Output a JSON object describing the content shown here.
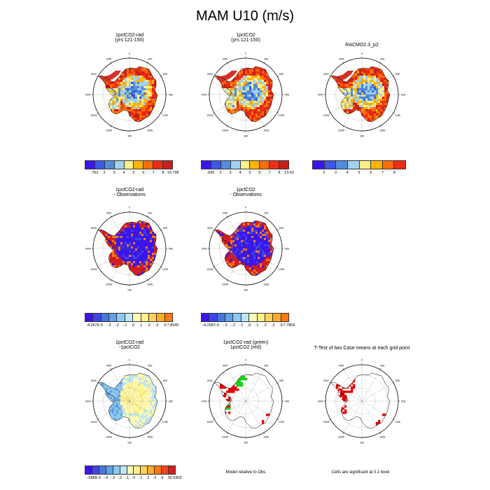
{
  "title": "MAM U10 (m/s)",
  "colors": {
    "rainbow": [
      "#3c14f0",
      "#3c5ae6",
      "#508cdc",
      "#a0d2f0",
      "#fff08c",
      "#ffb400",
      "#ff6e00",
      "#f02d14",
      "#c81e1e"
    ],
    "diff": [
      "#3c14f0",
      "#3c46e6",
      "#4678dc",
      "#64a0e6",
      "#8cc8f0",
      "#bee6f5",
      "#fffab4",
      "#fff08c",
      "#ffd25a",
      "#ffaa28",
      "#ff7814",
      "#f0461e",
      "#d21e1e"
    ],
    "land_red": "#d73228",
    "sig_red": "#e60000",
    "sig_green": "#14d214"
  },
  "panels": [
    {
      "title": "1pctCO2-rad",
      "subtitle": "(yrs 121-150)",
      "labelbar": [
        ".763",
        "2",
        "3",
        "4",
        "5",
        "6",
        "7",
        "8",
        "13.738"
      ]
    },
    {
      "title": "1pctCO2",
      "subtitle": "(yrs 121-150)",
      "labelbar": [
        ".695",
        "2",
        "3",
        "4",
        "5",
        "6",
        "7",
        "8",
        "13.63"
      ]
    },
    {
      "title": "RACMO2.3_p2",
      "subtitle": "",
      "labelbar": [
        "2",
        "3",
        "4",
        "5",
        "6",
        "7",
        "8"
      ]
    },
    {
      "title": "1pctCO2-rad",
      "subtitle": "- Observations",
      "labelbar": [
        "-4.2676",
        "-.5",
        "-.3",
        "-.2",
        "-.1",
        ".0",
        ".1",
        ".2",
        ".3",
        ".5",
        "7.8545"
      ]
    },
    {
      "title": "1pctCO2",
      "subtitle": "- Observations",
      "labelbar": [
        "-4.2587",
        "-.5",
        "-.3",
        "-.2",
        "-.1",
        ".0",
        ".1",
        ".2",
        ".3",
        ".5",
        "7.7806"
      ]
    },
    {
      "title": "1pctCO2-rad",
      "subtitle": "-1pctCO2",
      "labelbar": [
        "-.6888",
        "-.5",
        "-.4",
        "-.3",
        "-.2",
        "-.1",
        ".0",
        ".1",
        ".2",
        ".3",
        ".4",
        ".5",
        "2.0309"
      ]
    },
    {
      "title": "1pctCO2-rad (green)",
      "subtitle": "1pctCO2 (red)",
      "footnote": "Model relative to Obs"
    },
    {
      "title": "T-Test of two Case means at each grid point",
      "subtitle": "",
      "footnote": "Cells are significant at 0.1 level"
    }
  ],
  "lon_labels": [
    "0",
    "30E",
    "60E",
    "90E",
    "120E",
    "150E",
    "180",
    "150W",
    "120W",
    "90W",
    "60W",
    "30W"
  ]
}
